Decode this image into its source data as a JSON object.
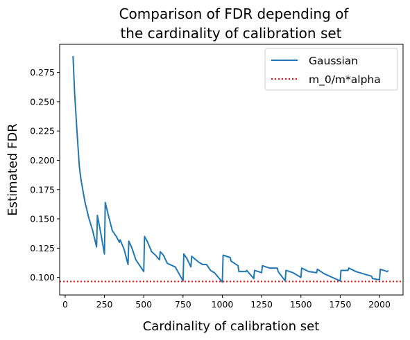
{
  "chart_data": {
    "type": "line",
    "title_lines": [
      "Comparison of FDR depending of",
      "the cardinality of calibration set"
    ],
    "xlabel": "Cardinality of calibration set",
    "ylabel": "Estimated FDR",
    "xlim": [
      -35,
      2150
    ],
    "ylim": [
      0.085,
      0.299
    ],
    "xticks": [
      0,
      250,
      500,
      750,
      1000,
      1250,
      1500,
      1750,
      2000
    ],
    "yticks": [
      0.1,
      0.125,
      0.15,
      0.175,
      0.2,
      0.225,
      0.25,
      0.275
    ],
    "ytick_labels": [
      "0.100",
      "0.125",
      "0.150",
      "0.175",
      "0.200",
      "0.225",
      "0.250",
      "0.275"
    ],
    "legend_position": "upper right",
    "series": [
      {
        "name": "Gaussian",
        "color": "#1f77b4",
        "style": "solid",
        "points": [
          [
            50,
            0.289
          ],
          [
            60,
            0.258
          ],
          [
            75,
            0.225
          ],
          [
            90,
            0.195
          ],
          [
            100,
            0.184
          ],
          [
            125,
            0.165
          ],
          [
            150,
            0.151
          ],
          [
            175,
            0.14
          ],
          [
            200,
            0.126
          ],
          [
            205,
            0.153
          ],
          [
            225,
            0.139
          ],
          [
            250,
            0.12
          ],
          [
            255,
            0.164
          ],
          [
            275,
            0.153
          ],
          [
            300,
            0.14
          ],
          [
            325,
            0.135
          ],
          [
            345,
            0.13
          ],
          [
            350,
            0.132
          ],
          [
            375,
            0.124
          ],
          [
            400,
            0.111
          ],
          [
            405,
            0.131
          ],
          [
            425,
            0.125
          ],
          [
            450,
            0.115
          ],
          [
            475,
            0.11
          ],
          [
            500,
            0.105
          ],
          [
            505,
            0.135
          ],
          [
            525,
            0.13
          ],
          [
            550,
            0.122
          ],
          [
            575,
            0.119
          ],
          [
            600,
            0.115
          ],
          [
            605,
            0.122
          ],
          [
            625,
            0.119
          ],
          [
            650,
            0.112
          ],
          [
            700,
            0.109
          ],
          [
            750,
            0.097
          ],
          [
            755,
            0.12
          ],
          [
            775,
            0.116
          ],
          [
            800,
            0.109
          ],
          [
            805,
            0.118
          ],
          [
            850,
            0.113
          ],
          [
            875,
            0.111
          ],
          [
            900,
            0.111
          ],
          [
            925,
            0.106
          ],
          [
            950,
            0.104
          ],
          [
            1000,
            0.096
          ],
          [
            1005,
            0.119
          ],
          [
            1050,
            0.117
          ],
          [
            1055,
            0.114
          ],
          [
            1100,
            0.11
          ],
          [
            1105,
            0.105
          ],
          [
            1150,
            0.105
          ],
          [
            1155,
            0.106
          ],
          [
            1200,
            0.099
          ],
          [
            1205,
            0.106
          ],
          [
            1250,
            0.104
          ],
          [
            1255,
            0.11
          ],
          [
            1300,
            0.108
          ],
          [
            1350,
            0.108
          ],
          [
            1355,
            0.105
          ],
          [
            1400,
            0.097
          ],
          [
            1405,
            0.106
          ],
          [
            1450,
            0.104
          ],
          [
            1500,
            0.1
          ],
          [
            1505,
            0.108
          ],
          [
            1550,
            0.105
          ],
          [
            1600,
            0.104
          ],
          [
            1605,
            0.107
          ],
          [
            1650,
            0.103
          ],
          [
            1700,
            0.1
          ],
          [
            1750,
            0.097
          ],
          [
            1755,
            0.106
          ],
          [
            1800,
            0.106
          ],
          [
            1805,
            0.108
          ],
          [
            1850,
            0.105
          ],
          [
            1900,
            0.103
          ],
          [
            1950,
            0.101
          ],
          [
            1955,
            0.099
          ],
          [
            2000,
            0.098
          ],
          [
            2005,
            0.107
          ],
          [
            2050,
            0.105
          ],
          [
            2055,
            0.106
          ]
        ]
      },
      {
        "name": "m_0/m*alpha",
        "color": "#ff0000",
        "style": "dotted",
        "y": 0.0965
      }
    ]
  }
}
